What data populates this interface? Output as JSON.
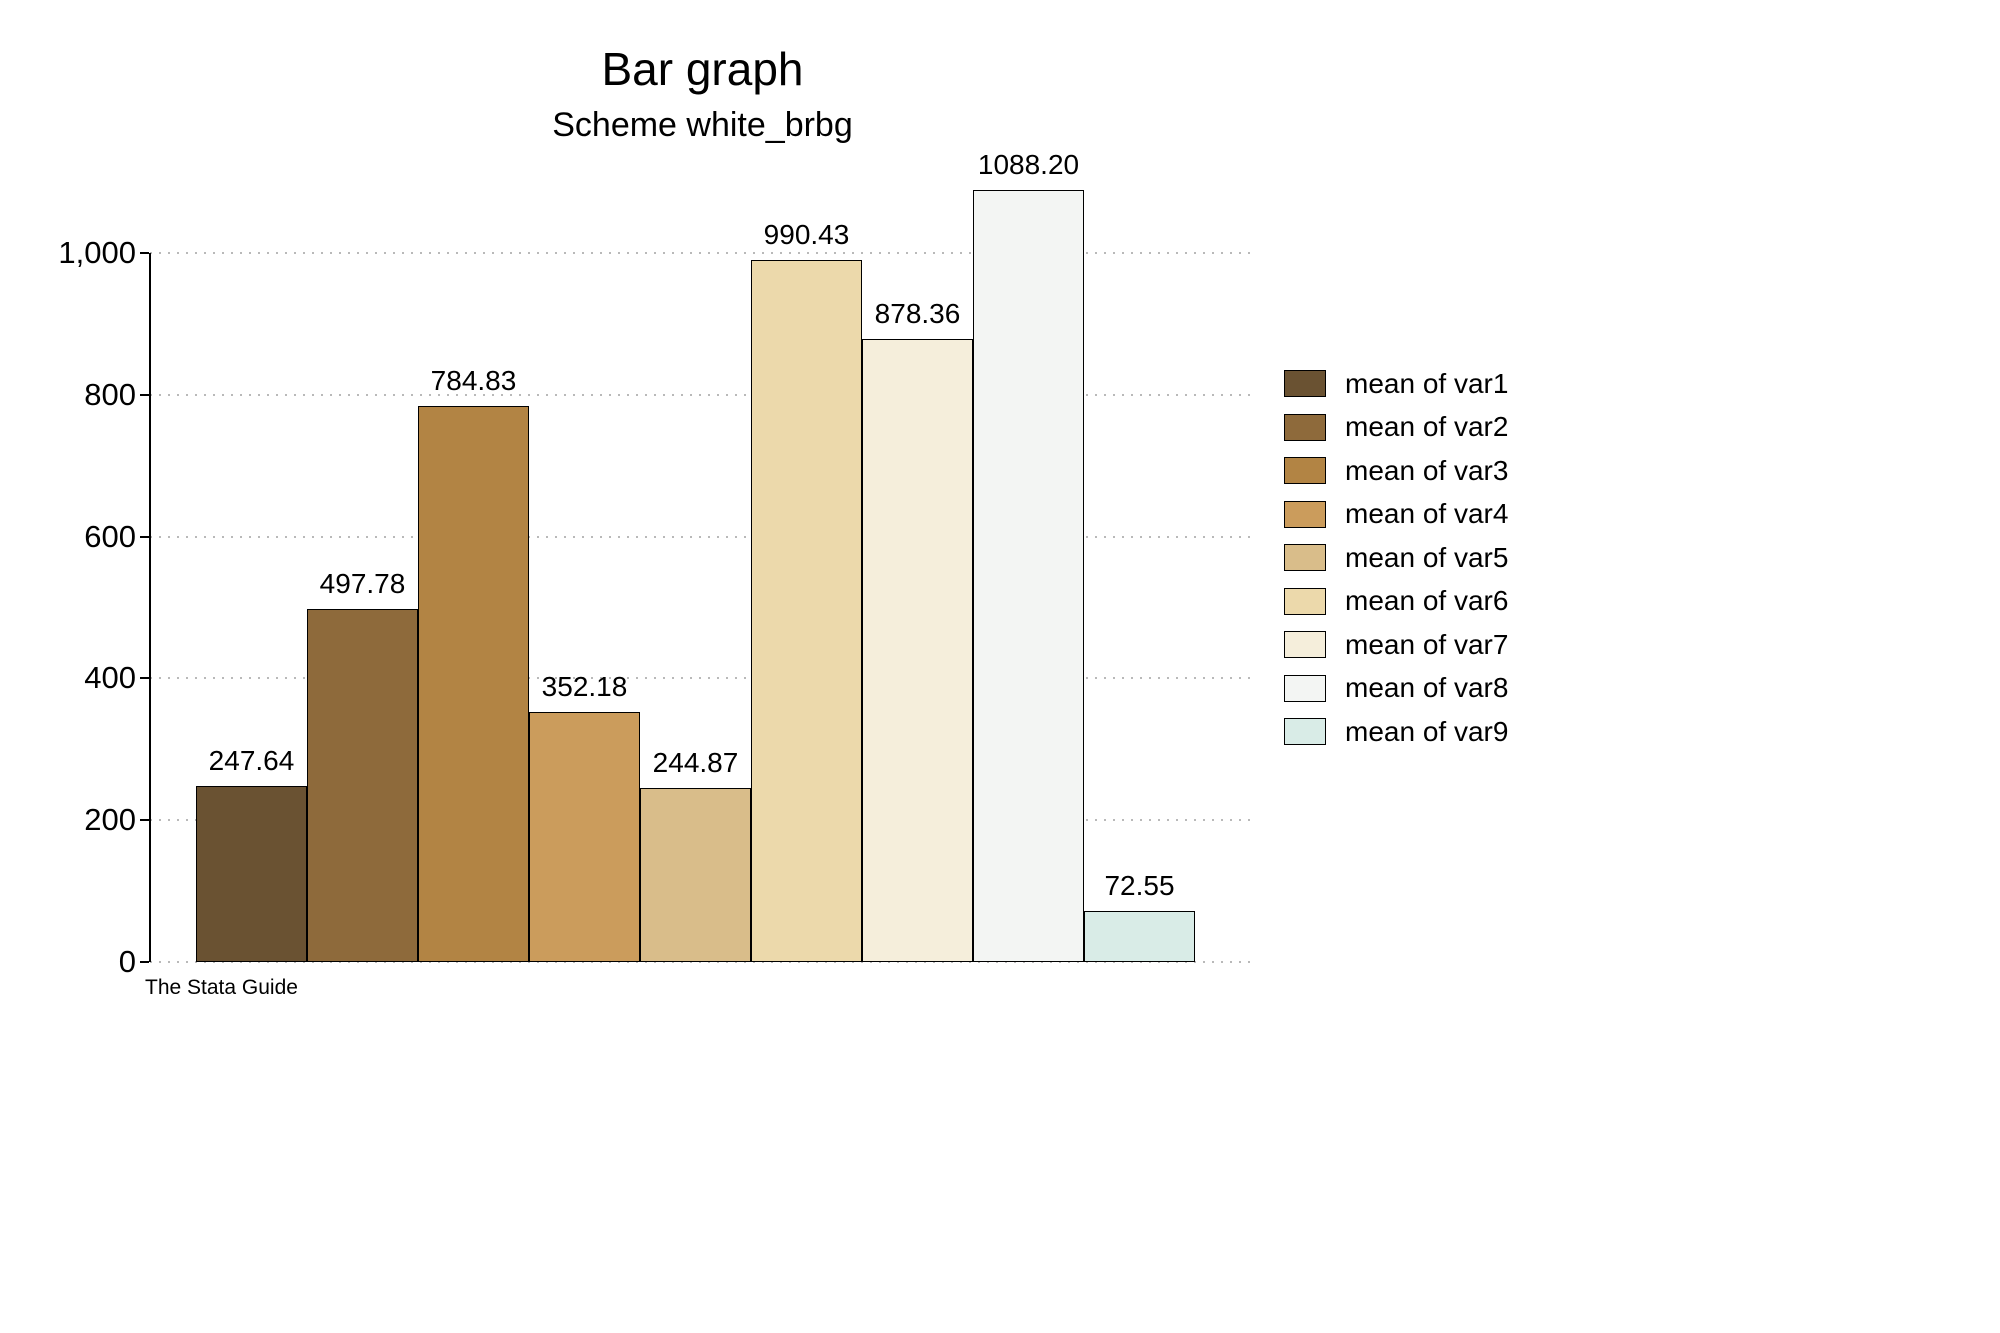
{
  "title": "Bar graph",
  "subtitle": "Scheme white_brbg",
  "caption": "The Stata Guide",
  "chart_data": {
    "type": "bar",
    "categories": [
      "var1",
      "var2",
      "var3",
      "var4",
      "var5",
      "var6",
      "var7",
      "var8",
      "var9"
    ],
    "values": [
      247.64,
      497.78,
      784.83,
      352.18,
      244.87,
      990.43,
      878.36,
      1088.2,
      72.55
    ],
    "value_labels": [
      "247.64",
      "497.78",
      "784.83",
      "352.18",
      "244.87",
      "990.43",
      "878.36",
      "1088.20",
      "72.55"
    ],
    "legend_labels": [
      "mean of var1",
      "mean of var2",
      "mean of var3",
      "mean of var4",
      "mean of var5",
      "mean of var6",
      "mean of var7",
      "mean of var8",
      "mean of var9"
    ],
    "colors": [
      "#6a5232",
      "#8e6a3b",
      "#b28444",
      "#cb9c5c",
      "#d9bd8a",
      "#ecd9ab",
      "#f5eedb",
      "#f3f5f3",
      "#d9ece7"
    ],
    "title": "Bar graph",
    "subtitle": "Scheme white_brbg",
    "xlabel": "",
    "ylabel": "",
    "yticks": [
      0,
      200,
      400,
      600,
      800,
      1000
    ],
    "ytick_labels": [
      "0",
      "200",
      "400",
      "600",
      "800",
      "1,000"
    ],
    "ylim": [
      0,
      1117
    ],
    "grid": "dotted-horizontal",
    "legend_position": "right",
    "gridline_color": "#b9b9b9"
  }
}
